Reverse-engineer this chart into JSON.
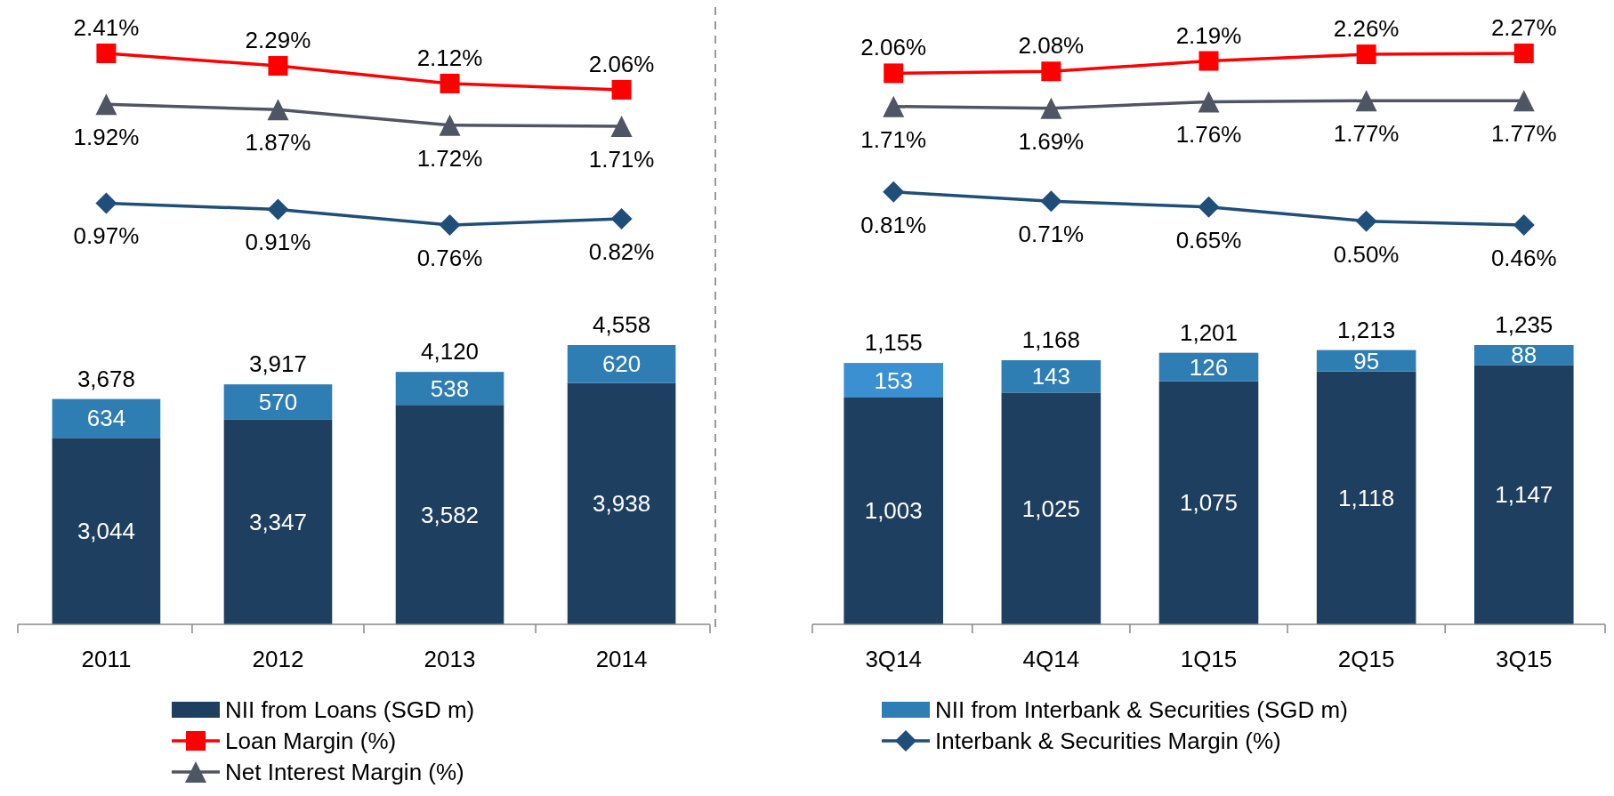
{
  "chart_data": [
    {
      "type": "line",
      "categories": [
        null,
        null,
        null,
        null
      ],
      "legend": "bottom",
      "series": [
        {
          "name": "Loan Margin (%)",
          "marker": "square",
          "color": "#ff0000",
          "values": [
            2.41,
            2.29,
            2.12,
            2.06
          ],
          "value_labels": [
            "2.41%",
            "2.29%",
            "2.12%",
            "2.06%"
          ]
        },
        {
          "name": "Interbank & Securities Margin (%)",
          "marker": "diamond",
          "color": "#1f4e78",
          "values": [
            0.97,
            0.91,
            0.76,
            0.82
          ],
          "value_labels": [
            "0.97%",
            "0.91%",
            "0.76%",
            "0.82%"
          ]
        },
        {
          "name": "Net Interest Margin (%)",
          "marker": "triangle",
          "color": "#4f5563",
          "values": [
            1.92,
            1.87,
            1.72,
            1.71
          ],
          "value_labels": [
            "1.92%",
            "1.87%",
            "1.72%",
            "1.71%"
          ]
        }
      ]
    },
    {
      "type": "bar",
      "categories": [
        "2011",
        "2012",
        "2013",
        "2014"
      ],
      "stacked": true,
      "legend": "bottom",
      "totals": [
        "3,678",
        "3,917",
        "4,120",
        "4,558"
      ],
      "series": [
        {
          "name": "NII from Loans (SGD m)",
          "color": "#1f3f61",
          "values": [
            3044,
            3347,
            3582,
            3938
          ],
          "value_labels": [
            "3,044",
            "3,347",
            "3,582",
            "3,938"
          ]
        },
        {
          "name": "NII from Interbank & Securities (SGD m)",
          "color": "#2e7db3",
          "values": [
            634,
            570,
            538,
            620
          ],
          "value_labels": [
            "634",
            "570",
            "538",
            "620"
          ]
        }
      ]
    },
    {
      "type": "line",
      "categories": [
        null,
        null,
        null,
        null,
        null
      ],
      "series": [
        {
          "marker": "square",
          "color": "#ff0000",
          "values": [
            2.06,
            2.08,
            2.19,
            2.26,
            2.27
          ],
          "value_labels": [
            "2.06%",
            "2.08%",
            "2.19%",
            "2.26%",
            "2.27%"
          ]
        },
        {
          "marker": "diamond",
          "color": "#1f4e78",
          "values": [
            0.81,
            0.71,
            0.65,
            0.5,
            0.46
          ],
          "value_labels": [
            "0.81%",
            "0.71%",
            "0.65%",
            "0.50%",
            "0.46%"
          ]
        },
        {
          "marker": "triangle",
          "color": "#4f5563",
          "values": [
            1.71,
            1.69,
            1.76,
            1.77,
            1.77
          ],
          "value_labels": [
            "1.71%",
            "1.69%",
            "1.76%",
            "1.77%",
            "1.77%"
          ]
        }
      ]
    },
    {
      "type": "bar",
      "categories": [
        "3Q14",
        "4Q14",
        "1Q15",
        "2Q15",
        "3Q15"
      ],
      "stacked": true,
      "totals": [
        "1,155",
        "1,168",
        "1,201",
        "1,213",
        "1,235"
      ],
      "series": [
        {
          "color": "#1f3f61",
          "values": [
            1003,
            1025,
            1075,
            1118,
            1147
          ],
          "value_labels": [
            "1,003",
            "1,025",
            "1,075",
            "1,118",
            "1,147"
          ]
        },
        {
          "colors": [
            "#3a90d0",
            "#2e7db3",
            "#2e7db3",
            "#2e7db3",
            "#2e7db3"
          ],
          "values": [
            153,
            143,
            126,
            95,
            88
          ],
          "value_labels": [
            "153",
            "143",
            "126",
            "95",
            "88"
          ]
        }
      ]
    }
  ]
}
